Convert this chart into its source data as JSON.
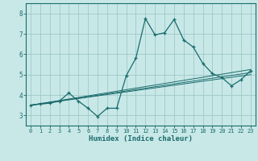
{
  "xlabel": "Humidex (Indice chaleur)",
  "bg_color": "#c8e8e8",
  "line_color": "#1a6b6b",
  "grid_color": "#a0c8c8",
  "xlim": [
    -0.5,
    23.5
  ],
  "ylim": [
    2.5,
    8.5
  ],
  "xticks": [
    0,
    1,
    2,
    3,
    4,
    5,
    6,
    7,
    8,
    9,
    10,
    11,
    12,
    13,
    14,
    15,
    16,
    17,
    18,
    19,
    20,
    21,
    22,
    23
  ],
  "yticks": [
    3,
    4,
    5,
    6,
    7,
    8
  ],
  "main_x": [
    0,
    1,
    2,
    3,
    4,
    5,
    6,
    7,
    8,
    9,
    10,
    11,
    12,
    13,
    14,
    15,
    16,
    17,
    18,
    19,
    20,
    21,
    22,
    23
  ],
  "main_y": [
    3.5,
    3.55,
    3.6,
    3.7,
    4.1,
    3.7,
    3.35,
    2.95,
    3.35,
    3.35,
    4.95,
    5.8,
    7.75,
    6.95,
    7.05,
    7.7,
    6.7,
    6.35,
    5.55,
    5.05,
    4.85,
    4.45,
    4.75,
    5.2
  ],
  "line1_x": [
    0,
    23
  ],
  "line1_y": [
    3.5,
    5.25
  ],
  "line2_x": [
    0,
    23
  ],
  "line2_y": [
    3.5,
    5.1
  ],
  "line3_x": [
    0,
    23
  ],
  "line3_y": [
    3.5,
    5.0
  ]
}
